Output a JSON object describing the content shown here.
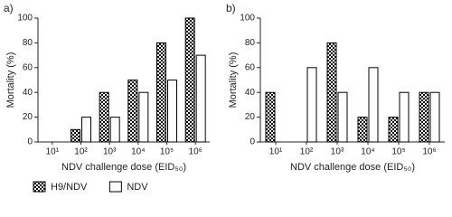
{
  "chart_data": [
    {
      "type": "bar",
      "title": "a)",
      "categories": [
        "10¹",
        "10²",
        "10³",
        "10⁴",
        "10⁵",
        "10⁶"
      ],
      "x_label": "NDV challenge dose (EID₅₀)",
      "y_label": "Mortality (%)",
      "series": [
        {
          "name": "H9/NDV",
          "color": "#000000",
          "pattern": "checker",
          "values": [
            0,
            10,
            40,
            50,
            80,
            100
          ]
        },
        {
          "name": "NDV",
          "color": "#ffffff",
          "values": [
            0,
            20,
            20,
            40,
            50,
            70
          ]
        }
      ],
      "ylim": [
        0,
        100
      ],
      "yticks": [
        0,
        20,
        40,
        60,
        80,
        100
      ],
      "grid": false,
      "legend": "bottom"
    },
    {
      "type": "bar",
      "title": "b)",
      "categories": [
        "10¹",
        "10²",
        "10³",
        "10⁴",
        "10⁵",
        "10⁶"
      ],
      "x_label": "NDV challenge dose (EID₅₀)",
      "y_label": "Mortality (%)",
      "series": [
        {
          "name": "H9/NDV",
          "color": "#000000",
          "pattern": "checker",
          "values": [
            40,
            0,
            80,
            20,
            20,
            40
          ]
        },
        {
          "name": "NDV",
          "color": "#ffffff",
          "values": [
            0,
            60,
            40,
            60,
            40,
            40
          ]
        }
      ],
      "ylim": [
        0,
        100
      ],
      "yticks": [
        0,
        20,
        40,
        60,
        80,
        100
      ],
      "grid": false
    }
  ]
}
